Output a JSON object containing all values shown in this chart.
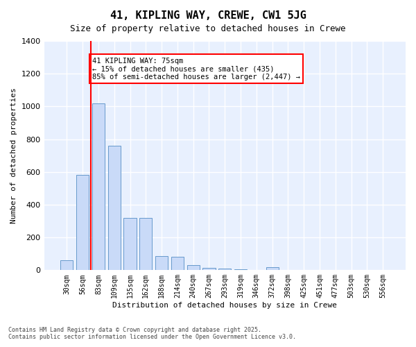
{
  "title1": "41, KIPLING WAY, CREWE, CW1 5JG",
  "title2": "Size of property relative to detached houses in Crewe",
  "xlabel": "Distribution of detached houses by size in Crewe",
  "ylabel": "Number of detached properties",
  "categories": [
    "30sqm",
    "56sqm",
    "83sqm",
    "109sqm",
    "135sqm",
    "162sqm",
    "188sqm",
    "214sqm",
    "240sqm",
    "267sqm",
    "293sqm",
    "319sqm",
    "346sqm",
    "372sqm",
    "398sqm",
    "425sqm",
    "451sqm",
    "477sqm",
    "503sqm",
    "530sqm",
    "556sqm"
  ],
  "values": [
    60,
    580,
    1020,
    760,
    320,
    320,
    85,
    80,
    30,
    15,
    10,
    5,
    0,
    20,
    0,
    0,
    0,
    0,
    0,
    0,
    0
  ],
  "bar_color": "#c9daf8",
  "bar_edge_color": "#6699cc",
  "vline_x": 1.5,
  "vline_color": "red",
  "annotation_title": "41 KIPLING WAY: 75sqm",
  "annotation_line2": "← 15% of detached houses are smaller (435)",
  "annotation_line3": "85% of semi-detached houses are larger (2,447) →",
  "annotation_box_color": "white",
  "annotation_box_edge": "red",
  "bg_color": "#e8f0fe",
  "grid_color": "white",
  "ylim": [
    0,
    1400
  ],
  "yticks": [
    0,
    200,
    400,
    600,
    800,
    1000,
    1200,
    1400
  ],
  "footer1": "Contains HM Land Registry data © Crown copyright and database right 2025.",
  "footer2": "Contains public sector information licensed under the Open Government Licence v3.0."
}
